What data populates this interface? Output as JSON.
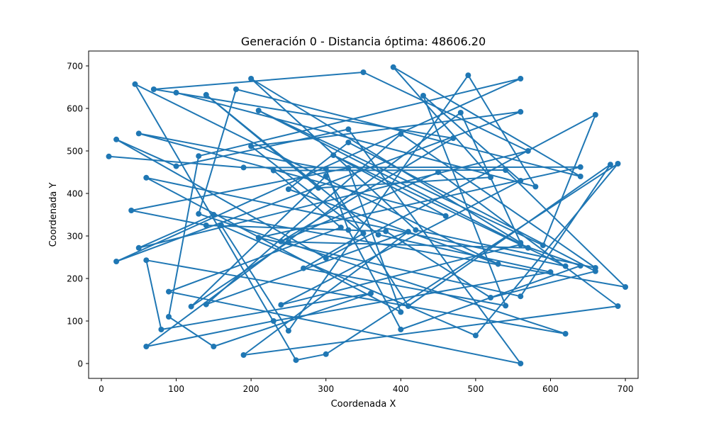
{
  "chart_data": {
    "type": "line",
    "title": "Generación 0 - Distancia óptima: 48606.20",
    "xlabel": "Coordenada X",
    "ylabel": "Coordenada Y",
    "xlim": [
      -17,
      717
    ],
    "ylim": [
      -35,
      735
    ],
    "xticks": [
      0,
      100,
      200,
      300,
      400,
      500,
      600,
      700
    ],
    "yticks": [
      0,
      100,
      200,
      300,
      400,
      500,
      600,
      700
    ],
    "grid": false,
    "color": "#1f77b4",
    "marker": "circle",
    "x": [
      10,
      190,
      640,
      210,
      560,
      680,
      410,
      300,
      120,
      250,
      570,
      210,
      590,
      660,
      300,
      20,
      100,
      330,
      560,
      90,
      320,
      230,
      540,
      700,
      150,
      50,
      570,
      350,
      70,
      470,
      240,
      450,
      690,
      190,
      410,
      140,
      400,
      660,
      420,
      200,
      560,
      480,
      60,
      230,
      600,
      370,
      140,
      290,
      520,
      390,
      640,
      180,
      130,
      620,
      60,
      80,
      360,
      150,
      90,
      130,
      560,
      20,
      560,
      200,
      350,
      270,
      540,
      430,
      560,
      240,
      560,
      640,
      400,
      330,
      300,
      50,
      460,
      310,
      620,
      60,
      400,
      330,
      40,
      140,
      380,
      520,
      660,
      330,
      250,
      530,
      45,
      260,
      300,
      690,
      500,
      160,
      250,
      490,
      580,
      100
    ],
    "y": [
      487,
      461,
      462,
      296,
      158,
      468,
      135,
      441,
      134,
      286,
      272,
      595,
      278,
      585,
      248,
      527,
      464,
      551,
      0,
      169,
      320,
      454,
      455,
      180,
      350,
      272,
      500,
      685,
      645,
      530,
      287,
      450,
      135,
      20,
      310,
      139,
      540,
      225,
      314,
      670,
      284,
      590,
      40,
      100,
      215,
      303,
      632,
      413,
      438,
      697,
      440,
      645,
      352,
      70,
      243,
      80,
      165,
      40,
      110,
      488,
      670,
      240,
      592,
      511,
      306,
      224,
      136,
      630,
      430,
      138,
      280,
      230,
      80,
      314,
      458,
      541,
      347,
      490,
      229,
      437,
      121,
      460,
      360,
      325,
      311,
      155,
      217,
      520,
      410,
      234,
      657,
      8,
      22,
      470,
      66,
      325,
      77,
      678,
      416,
      637
    ]
  }
}
